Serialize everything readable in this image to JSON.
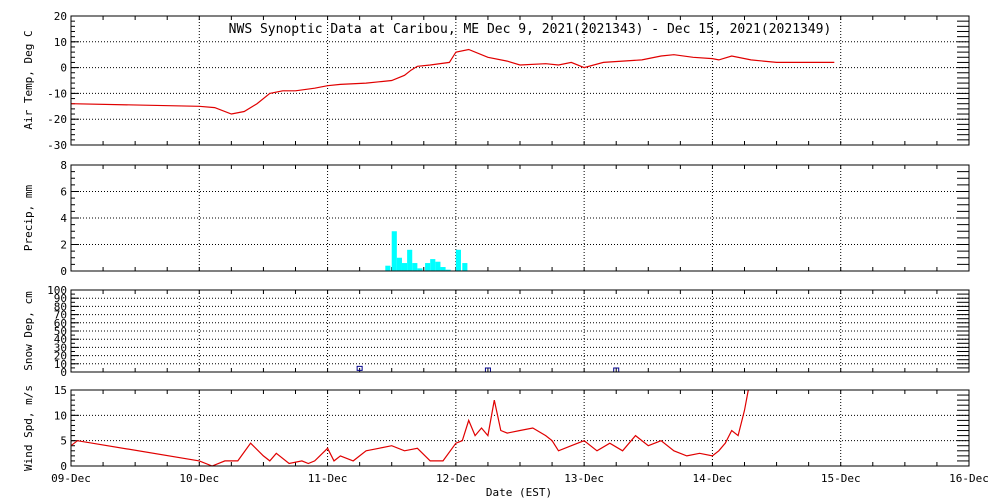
{
  "title": "NWS Synoptic Data at Caribou, ME   Dec  9, 2021(2021343) - Dec 15, 2021(2021349)",
  "xlabel": "Date (EST)",
  "x_ticks": [
    "09-Dec",
    "10-Dec",
    "11-Dec",
    "12-Dec",
    "13-Dec",
    "14-Dec",
    "15-Dec",
    "16-Dec"
  ],
  "colors": {
    "temp": "#e00000",
    "precip": "#00ffff",
    "snow": "#00008b",
    "wind": "#e00000",
    "axis": "#000000"
  },
  "chart_data": [
    {
      "type": "line",
      "ylabel": "Air Temp, Deg C",
      "xlim": [
        0,
        7
      ],
      "ylim": [
        -30,
        20
      ],
      "yticks": [
        -30,
        -20,
        -10,
        0,
        10,
        20
      ],
      "grid": true,
      "x": [
        0,
        1.0,
        1.12,
        1.25,
        1.35,
        1.45,
        1.55,
        1.65,
        1.75,
        1.9,
        2.0,
        2.1,
        2.3,
        2.4,
        2.5,
        2.6,
        2.65,
        2.7,
        2.8,
        2.95,
        3.0,
        3.1,
        3.25,
        3.4,
        3.5,
        3.7,
        3.8,
        3.9,
        4.0,
        4.15,
        4.3,
        4.45,
        4.6,
        4.7,
        4.85,
        5.0,
        5.05,
        5.15,
        5.3,
        5.5,
        5.8,
        5.95
      ],
      "y": [
        -14,
        -15,
        -15.5,
        -18,
        -17,
        -14,
        -10,
        -9,
        -9,
        -8,
        -7,
        -6.5,
        -6,
        -5.5,
        -5,
        -3,
        -1,
        0.5,
        1,
        2,
        6,
        7,
        4,
        2.5,
        1,
        1.5,
        1,
        2,
        0,
        2,
        2.5,
        3,
        4.5,
        5,
        4,
        3.5,
        3,
        4.5,
        3,
        2,
        2,
        2
      ]
    },
    {
      "type": "bar",
      "ylabel": "Precip, mm",
      "xlim": [
        0,
        7
      ],
      "ylim": [
        0,
        8
      ],
      "yticks": [
        0,
        2,
        4,
        6,
        8
      ],
      "grid": true,
      "x": [
        2.47,
        2.52,
        2.56,
        2.6,
        2.64,
        2.68,
        2.72,
        2.78,
        2.82,
        2.86,
        2.9,
        2.94,
        3.02,
        3.07
      ],
      "values": [
        0.4,
        3.0,
        1.0,
        0.6,
        1.6,
        0.6,
        0.2,
        0.6,
        0.9,
        0.7,
        0.3,
        0.1,
        1.6,
        0.6
      ]
    },
    {
      "type": "scatter",
      "ylabel": "Snow Dep, cm",
      "xlim": [
        0,
        7
      ],
      "ylim": [
        0,
        100
      ],
      "yticks": [
        0,
        20,
        40,
        60,
        80,
        100
      ],
      "yticks_labels": [
        "0",
        "20",
        "40",
        "60",
        "80",
        "100"
      ],
      "ytick_labels_extra": [
        "10",
        "30",
        "50",
        "70",
        "90"
      ],
      "grid": true,
      "x": [
        2.25,
        3.25,
        4.25
      ],
      "y": [
        2,
        0,
        0
      ]
    },
    {
      "type": "line",
      "ylabel": "Wind Spd, m/s",
      "xlim": [
        0,
        7
      ],
      "ylim": [
        0,
        15
      ],
      "yticks": [
        0,
        5,
        10,
        15
      ],
      "grid": true,
      "x": [
        0,
        0.05,
        1.0,
        1.1,
        1.2,
        1.3,
        1.4,
        1.5,
        1.55,
        1.6,
        1.7,
        1.8,
        1.85,
        1.9,
        2.0,
        2.05,
        2.1,
        2.2,
        2.3,
        2.4,
        2.5,
        2.6,
        2.7,
        2.8,
        2.9,
        3.0,
        3.05,
        3.1,
        3.15,
        3.2,
        3.25,
        3.3,
        3.35,
        3.4,
        3.5,
        3.6,
        3.7,
        3.75,
        3.8,
        3.9,
        4.0,
        4.1,
        4.2,
        4.3,
        4.4,
        4.5,
        4.6,
        4.7,
        4.8,
        4.9,
        5.0,
        5.05,
        5.1,
        5.15,
        5.2,
        5.25,
        5.28
      ],
      "y": [
        4,
        5,
        1,
        0,
        1,
        1,
        4.5,
        2,
        1,
        2.5,
        0.5,
        1,
        0.5,
        1,
        3.5,
        1,
        2,
        1,
        3,
        3.5,
        4,
        3,
        3.5,
        1,
        1,
        4.5,
        5,
        9,
        6,
        7.5,
        6,
        13,
        7,
        6.5,
        7,
        7.5,
        6,
        5,
        3,
        4,
        5,
        3,
        4.5,
        3,
        6,
        4,
        5,
        3,
        2,
        2.5,
        2,
        3,
        4.5,
        7,
        6,
        11,
        15
      ]
    }
  ]
}
